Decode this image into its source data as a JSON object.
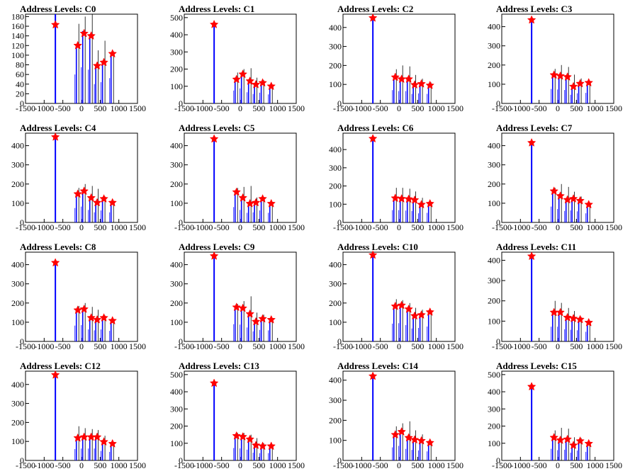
{
  "colors": {
    "hist": "#0000ff",
    "spike": "#000000",
    "marker": "#ff0000",
    "axis": "#000000"
  },
  "chart_data": [
    {
      "type": "bar",
      "title": "Address Levels: C0",
      "xlim": [
        -1500,
        1500
      ],
      "ylim": [
        0,
        185
      ],
      "xticks": [
        -1500,
        -1000,
        -500,
        0,
        500,
        1000,
        1500
      ],
      "yticks": [
        0,
        20,
        40,
        60,
        80,
        100,
        120,
        140,
        160,
        180
      ],
      "peaks": [
        {
          "x": -700,
          "y": 185,
          "spike": 185,
          "star": 163
        },
        {
          "x": -100,
          "y": 120,
          "spike": 165,
          "star": 120
        },
        {
          "x": 70,
          "y": 150,
          "spike": 180,
          "star": 145
        },
        {
          "x": 260,
          "y": 140,
          "spike": 185,
          "star": 140
        },
        {
          "x": 420,
          "y": 80,
          "spike": 110,
          "star": 78
        },
        {
          "x": 600,
          "y": 88,
          "spike": 130,
          "star": 85
        },
        {
          "x": 830,
          "y": 105,
          "spike": 108,
          "star": 103
        }
      ]
    },
    {
      "type": "bar",
      "title": "Address Levels: C1",
      "xlim": [
        -1500,
        1500
      ],
      "ylim": [
        0,
        520
      ],
      "xticks": [
        -1500,
        -1000,
        -500,
        0,
        500,
        1000,
        1500
      ],
      "yticks": [
        0,
        100,
        200,
        300,
        400,
        500
      ],
      "peaks": [
        {
          "x": -700,
          "y": 470,
          "spike": 470,
          "star": 460
        },
        {
          "x": -100,
          "y": 150,
          "spike": 180,
          "star": 140
        },
        {
          "x": 70,
          "y": 175,
          "spike": 200,
          "star": 170
        },
        {
          "x": 260,
          "y": 130,
          "spike": 205,
          "star": 130
        },
        {
          "x": 420,
          "y": 110,
          "spike": 150,
          "star": 110
        },
        {
          "x": 600,
          "y": 125,
          "spike": 135,
          "star": 120
        },
        {
          "x": 830,
          "y": 105,
          "spike": 110,
          "star": 100
        }
      ]
    },
    {
      "type": "bar",
      "title": "Address Levels: C2",
      "xlim": [
        -1500,
        1500
      ],
      "ylim": [
        0,
        470
      ],
      "xticks": [
        -1500,
        -1000,
        -500,
        0,
        500,
        1000,
        1500
      ],
      "yticks": [
        0,
        100,
        200,
        300,
        400
      ],
      "peaks": [
        {
          "x": -700,
          "y": 460,
          "spike": 460,
          "star": 450
        },
        {
          "x": -100,
          "y": 140,
          "spike": 180,
          "star": 138
        },
        {
          "x": 70,
          "y": 130,
          "spike": 200,
          "star": 128
        },
        {
          "x": 260,
          "y": 130,
          "spike": 195,
          "star": 128
        },
        {
          "x": 420,
          "y": 100,
          "spike": 150,
          "star": 98
        },
        {
          "x": 600,
          "y": 105,
          "spike": 130,
          "star": 103
        },
        {
          "x": 830,
          "y": 100,
          "spike": 110,
          "star": 95
        }
      ]
    },
    {
      "type": "bar",
      "title": "Address Levels: C3",
      "xlim": [
        -1500,
        1500
      ],
      "ylim": [
        0,
        465
      ],
      "xticks": [
        -1500,
        -1000,
        -500,
        0,
        500,
        1000,
        1500
      ],
      "yticks": [
        0,
        100,
        200,
        300,
        400
      ],
      "peaks": [
        {
          "x": -700,
          "y": 445,
          "spike": 445,
          "star": 435
        },
        {
          "x": -100,
          "y": 150,
          "spike": 180,
          "star": 148
        },
        {
          "x": 70,
          "y": 145,
          "spike": 200,
          "star": 143
        },
        {
          "x": 260,
          "y": 140,
          "spike": 190,
          "star": 138
        },
        {
          "x": 420,
          "y": 90,
          "spike": 150,
          "star": 88
        },
        {
          "x": 600,
          "y": 105,
          "spike": 130,
          "star": 103
        },
        {
          "x": 830,
          "y": 110,
          "spike": 112,
          "star": 108
        }
      ]
    },
    {
      "type": "bar",
      "title": "Address Levels: C4",
      "xlim": [
        -1500,
        1500
      ],
      "ylim": [
        0,
        465
      ],
      "xticks": [
        -1500,
        -1000,
        -500,
        0,
        500,
        1000,
        1500
      ],
      "yticks": [
        0,
        100,
        200,
        300,
        400
      ],
      "peaks": [
        {
          "x": -700,
          "y": 455,
          "spike": 455,
          "star": 445
        },
        {
          "x": -100,
          "y": 150,
          "spike": 180,
          "star": 148
        },
        {
          "x": 70,
          "y": 165,
          "spike": 200,
          "star": 163
        },
        {
          "x": 260,
          "y": 130,
          "spike": 190,
          "star": 128
        },
        {
          "x": 420,
          "y": 105,
          "spike": 175,
          "star": 103
        },
        {
          "x": 600,
          "y": 125,
          "spike": 135,
          "star": 123
        },
        {
          "x": 830,
          "y": 105,
          "spike": 110,
          "star": 103
        }
      ]
    },
    {
      "type": "bar",
      "title": "Address Levels: C5",
      "xlim": [
        -1500,
        1500
      ],
      "ylim": [
        0,
        465
      ],
      "xticks": [
        -1500,
        -1000,
        -500,
        0,
        500,
        1000,
        1500
      ],
      "yticks": [
        0,
        100,
        200,
        300,
        400
      ],
      "peaks": [
        {
          "x": -700,
          "y": 445,
          "spike": 445,
          "star": 435
        },
        {
          "x": -100,
          "y": 160,
          "spike": 180,
          "star": 158
        },
        {
          "x": 70,
          "y": 130,
          "spike": 185,
          "star": 128
        },
        {
          "x": 260,
          "y": 100,
          "spike": 190,
          "star": 98
        },
        {
          "x": 420,
          "y": 105,
          "spike": 130,
          "star": 103
        },
        {
          "x": 600,
          "y": 125,
          "spike": 130,
          "star": 123
        },
        {
          "x": 830,
          "y": 100,
          "spike": 105,
          "star": 98
        }
      ]
    },
    {
      "type": "bar",
      "title": "Address Levels: C6",
      "xlim": [
        -1500,
        1500
      ],
      "ylim": [
        0,
        490
      ],
      "xticks": [
        -1500,
        -1000,
        -500,
        0,
        500,
        1000,
        1500
      ],
      "yticks": [
        0,
        100,
        200,
        300,
        400
      ],
      "peaks": [
        {
          "x": -700,
          "y": 470,
          "spike": 470,
          "star": 460
        },
        {
          "x": -100,
          "y": 135,
          "spike": 190,
          "star": 133
        },
        {
          "x": 70,
          "y": 135,
          "spike": 190,
          "star": 130
        },
        {
          "x": 260,
          "y": 130,
          "spike": 185,
          "star": 128
        },
        {
          "x": 420,
          "y": 125,
          "spike": 170,
          "star": 123
        },
        {
          "x": 600,
          "y": 100,
          "spike": 135,
          "star": 98
        },
        {
          "x": 830,
          "y": 105,
          "spike": 108,
          "star": 103
        }
      ]
    },
    {
      "type": "bar",
      "title": "Address Levels: C7",
      "xlim": [
        -1500,
        1500
      ],
      "ylim": [
        0,
        465
      ],
      "xticks": [
        -1500,
        -1000,
        -500,
        0,
        500,
        1000,
        1500
      ],
      "yticks": [
        0,
        100,
        200,
        300,
        400
      ],
      "peaks": [
        {
          "x": -700,
          "y": 425,
          "spike": 425,
          "star": 415
        },
        {
          "x": -100,
          "y": 165,
          "spike": 180,
          "star": 163
        },
        {
          "x": 70,
          "y": 140,
          "spike": 200,
          "star": 138
        },
        {
          "x": 260,
          "y": 120,
          "spike": 185,
          "star": 118
        },
        {
          "x": 420,
          "y": 125,
          "spike": 160,
          "star": 123
        },
        {
          "x": 600,
          "y": 115,
          "spike": 135,
          "star": 113
        },
        {
          "x": 830,
          "y": 95,
          "spike": 100,
          "star": 93
        }
      ]
    },
    {
      "type": "bar",
      "title": "Address Levels: C8",
      "xlim": [
        -1500,
        1500
      ],
      "ylim": [
        0,
        465
      ],
      "xticks": [
        -1500,
        -1000,
        -500,
        0,
        500,
        1000,
        1500
      ],
      "yticks": [
        0,
        100,
        200,
        300,
        400
      ],
      "peaks": [
        {
          "x": -700,
          "y": 420,
          "spike": 420,
          "star": 410
        },
        {
          "x": -100,
          "y": 165,
          "spike": 185,
          "star": 163
        },
        {
          "x": 70,
          "y": 170,
          "spike": 200,
          "star": 168
        },
        {
          "x": 260,
          "y": 125,
          "spike": 180,
          "star": 123
        },
        {
          "x": 420,
          "y": 115,
          "spike": 165,
          "star": 113
        },
        {
          "x": 600,
          "y": 125,
          "spike": 135,
          "star": 123
        },
        {
          "x": 830,
          "y": 110,
          "spike": 112,
          "star": 108
        }
      ]
    },
    {
      "type": "bar",
      "title": "Address Levels: C9",
      "xlim": [
        -1500,
        1500
      ],
      "ylim": [
        0,
        465
      ],
      "xticks": [
        -1500,
        -1000,
        -500,
        0,
        500,
        1000,
        1500
      ],
      "yticks": [
        0,
        100,
        200,
        300,
        400
      ],
      "peaks": [
        {
          "x": -700,
          "y": 455,
          "spike": 455,
          "star": 445
        },
        {
          "x": -100,
          "y": 180,
          "spike": 195,
          "star": 178
        },
        {
          "x": 70,
          "y": 175,
          "spike": 210,
          "star": 173
        },
        {
          "x": 260,
          "y": 145,
          "spike": 235,
          "star": 143
        },
        {
          "x": 420,
          "y": 105,
          "spike": 150,
          "star": 103
        },
        {
          "x": 600,
          "y": 120,
          "spike": 140,
          "star": 118
        },
        {
          "x": 830,
          "y": 115,
          "spike": 118,
          "star": 113
        }
      ]
    },
    {
      "type": "bar",
      "title": "Address Levels: C10",
      "xlim": [
        -1500,
        1500
      ],
      "ylim": [
        0,
        465
      ],
      "xticks": [
        -1500,
        -1000,
        -500,
        0,
        500,
        1000,
        1500
      ],
      "yticks": [
        0,
        100,
        200,
        300,
        400
      ],
      "peaks": [
        {
          "x": -700,
          "y": 460,
          "spike": 460,
          "star": 450
        },
        {
          "x": -100,
          "y": 185,
          "spike": 220,
          "star": 183
        },
        {
          "x": 70,
          "y": 190,
          "spike": 215,
          "star": 188
        },
        {
          "x": 260,
          "y": 170,
          "spike": 200,
          "star": 168
        },
        {
          "x": 420,
          "y": 135,
          "spike": 175,
          "star": 133
        },
        {
          "x": 600,
          "y": 140,
          "spike": 165,
          "star": 138
        },
        {
          "x": 830,
          "y": 155,
          "spike": 158,
          "star": 153
        }
      ]
    },
    {
      "type": "bar",
      "title": "Address Levels: C11",
      "xlim": [
        -1500,
        1500
      ],
      "ylim": [
        0,
        440
      ],
      "xticks": [
        -1500,
        -1000,
        -500,
        0,
        500,
        1000,
        1500
      ],
      "yticks": [
        0,
        100,
        200,
        300,
        400
      ],
      "peaks": [
        {
          "x": -700,
          "y": 430,
          "spike": 430,
          "star": 420
        },
        {
          "x": -100,
          "y": 145,
          "spike": 200,
          "star": 143
        },
        {
          "x": 70,
          "y": 145,
          "spike": 190,
          "star": 143
        },
        {
          "x": 260,
          "y": 120,
          "spike": 165,
          "star": 118
        },
        {
          "x": 420,
          "y": 115,
          "spike": 150,
          "star": 113
        },
        {
          "x": 600,
          "y": 110,
          "spike": 120,
          "star": 108
        },
        {
          "x": 830,
          "y": 95,
          "spike": 100,
          "star": 93
        }
      ]
    },
    {
      "type": "bar",
      "title": "Address Levels: C12",
      "xlim": [
        -1500,
        1500
      ],
      "ylim": [
        0,
        470
      ],
      "xticks": [
        -1500,
        -1000,
        -500,
        0,
        500,
        1000,
        1500
      ],
      "yticks": [
        0,
        100,
        200,
        300,
        400
      ],
      "peaks": [
        {
          "x": -700,
          "y": 460,
          "spike": 460,
          "star": 450
        },
        {
          "x": -100,
          "y": 120,
          "spike": 180,
          "star": 118
        },
        {
          "x": 70,
          "y": 125,
          "spike": 170,
          "star": 123
        },
        {
          "x": 260,
          "y": 125,
          "spike": 165,
          "star": 123
        },
        {
          "x": 420,
          "y": 125,
          "spike": 160,
          "star": 123
        },
        {
          "x": 600,
          "y": 100,
          "spike": 130,
          "star": 98
        },
        {
          "x": 830,
          "y": 90,
          "spike": 95,
          "star": 88
        }
      ]
    },
    {
      "type": "bar",
      "title": "Address Levels: C13",
      "xlim": [
        -1500,
        1500
      ],
      "ylim": [
        0,
        520
      ],
      "xticks": [
        -1500,
        -1000,
        -500,
        0,
        500,
        1000,
        1500
      ],
      "yticks": [
        0,
        100,
        200,
        300,
        400,
        500
      ],
      "peaks": [
        {
          "x": -700,
          "y": 460,
          "spike": 460,
          "star": 450
        },
        {
          "x": -100,
          "y": 145,
          "spike": 160,
          "star": 143
        },
        {
          "x": 70,
          "y": 140,
          "spike": 160,
          "star": 138
        },
        {
          "x": 260,
          "y": 125,
          "spike": 150,
          "star": 123
        },
        {
          "x": 420,
          "y": 90,
          "spike": 130,
          "star": 88
        },
        {
          "x": 600,
          "y": 85,
          "spike": 100,
          "star": 83
        },
        {
          "x": 830,
          "y": 85,
          "spike": 88,
          "star": 83
        }
      ]
    },
    {
      "type": "bar",
      "title": "Address Levels: C14",
      "xlim": [
        -1500,
        1500
      ],
      "ylim": [
        0,
        445
      ],
      "xticks": [
        -1500,
        -1000,
        -500,
        0,
        500,
        1000,
        1500
      ],
      "yticks": [
        0,
        100,
        200,
        300,
        400
      ],
      "peaks": [
        {
          "x": -700,
          "y": 430,
          "spike": 430,
          "star": 420
        },
        {
          "x": -100,
          "y": 130,
          "spike": 170,
          "star": 128
        },
        {
          "x": 70,
          "y": 145,
          "spike": 185,
          "star": 143
        },
        {
          "x": 260,
          "y": 115,
          "spike": 195,
          "star": 113
        },
        {
          "x": 420,
          "y": 105,
          "spike": 150,
          "star": 103
        },
        {
          "x": 600,
          "y": 100,
          "spike": 130,
          "star": 98
        },
        {
          "x": 830,
          "y": 90,
          "spike": 95,
          "star": 88
        }
      ]
    },
    {
      "type": "bar",
      "title": "Address Levels: C15",
      "xlim": [
        -1500,
        1500
      ],
      "ylim": [
        0,
        520
      ],
      "xticks": [
        -1500,
        -1000,
        -500,
        0,
        500,
        1000,
        1500
      ],
      "yticks": [
        0,
        100,
        200,
        300,
        400,
        500
      ],
      "peaks": [
        {
          "x": -700,
          "y": 440,
          "spike": 440,
          "star": 430
        },
        {
          "x": -100,
          "y": 135,
          "spike": 175,
          "star": 133
        },
        {
          "x": 70,
          "y": 120,
          "spike": 190,
          "star": 118
        },
        {
          "x": 260,
          "y": 125,
          "spike": 185,
          "star": 123
        },
        {
          "x": 420,
          "y": 90,
          "spike": 135,
          "star": 88
        },
        {
          "x": 600,
          "y": 115,
          "spike": 130,
          "star": 113
        },
        {
          "x": 830,
          "y": 100,
          "spike": 105,
          "star": 98
        }
      ]
    }
  ]
}
